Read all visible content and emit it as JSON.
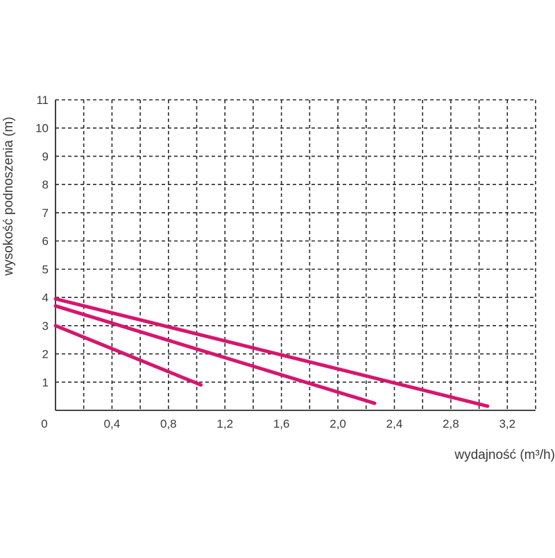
{
  "chart_data": {
    "type": "line",
    "xlabel": "wydajność (m³/h)",
    "ylabel": "wysokość podnoszenia (m)",
    "origin_label": "0",
    "xlim": [
      0,
      3.4
    ],
    "ylim": [
      0,
      11
    ],
    "x_ticks": [
      0.2,
      0.4,
      0.6,
      0.8,
      1.0,
      1.2,
      1.4,
      1.6,
      1.8,
      2.0,
      2.2,
      2.4,
      2.6,
      2.8,
      3.0,
      3.2
    ],
    "x_tick_labels": [
      {
        "value": 0.4,
        "label": "0,4"
      },
      {
        "value": 0.8,
        "label": "0,8"
      },
      {
        "value": 1.2,
        "label": "1,2"
      },
      {
        "value": 1.6,
        "label": "1,6"
      },
      {
        "value": 2.0,
        "label": "2,0"
      },
      {
        "value": 2.4,
        "label": "2,4"
      },
      {
        "value": 2.8,
        "label": "2,8"
      },
      {
        "value": 3.2,
        "label": "3,2"
      }
    ],
    "y_ticks": [
      1,
      2,
      3,
      4,
      5,
      6,
      7,
      8,
      9,
      10,
      11
    ],
    "y_tick_labels": [
      "1",
      "2",
      "3",
      "4",
      "5",
      "6",
      "7",
      "8",
      "9",
      "10",
      "11"
    ],
    "grid": true,
    "line_color": "#d6166e",
    "series": [
      {
        "x": [
          0,
          1.03
        ],
        "y": [
          3.0,
          0.9
        ]
      },
      {
        "x": [
          0,
          2.26
        ],
        "y": [
          3.7,
          0.25
        ]
      },
      {
        "x": [
          0,
          3.06
        ],
        "y": [
          3.95,
          0.15
        ]
      }
    ]
  }
}
